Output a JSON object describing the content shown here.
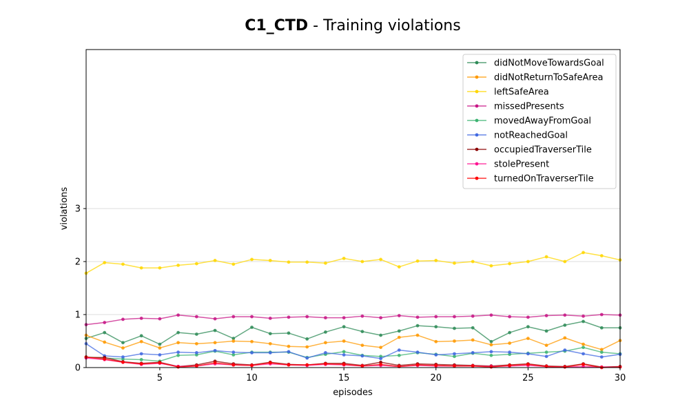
{
  "title": {
    "bold": "C1_CTD",
    "rest": " - Training violations"
  },
  "chart_data": {
    "type": "line",
    "xlabel": "episodes",
    "ylabel": "violations",
    "xlim": [
      1,
      30
    ],
    "ylim": [
      0,
      6
    ],
    "xticks": [
      5,
      10,
      15,
      20,
      25,
      30
    ],
    "yticks": [
      0,
      1,
      2,
      3
    ],
    "grid": "horizontal",
    "legend_position": "top-right",
    "x": [
      1,
      2,
      3,
      4,
      5,
      6,
      7,
      8,
      9,
      10,
      11,
      12,
      13,
      14,
      15,
      16,
      17,
      18,
      19,
      20,
      21,
      22,
      23,
      24,
      25,
      26,
      27,
      28,
      29,
      30
    ],
    "series": [
      {
        "name": "didNotMoveTowardsGoal",
        "color": "#2e8b57",
        "values": [
          0.55,
          0.66,
          0.47,
          0.6,
          0.44,
          0.66,
          0.63,
          0.7,
          0.55,
          0.76,
          0.64,
          0.65,
          0.54,
          0.67,
          0.77,
          0.68,
          0.61,
          0.69,
          0.79,
          0.77,
          0.74,
          0.75,
          0.49,
          0.66,
          0.77,
          0.69,
          0.8,
          0.87,
          0.75,
          0.75
        ]
      },
      {
        "name": "didNotReturnToSafeArea",
        "color": "#ff9900",
        "values": [
          0.61,
          0.48,
          0.37,
          0.49,
          0.37,
          0.47,
          0.45,
          0.47,
          0.5,
          0.49,
          0.45,
          0.4,
          0.39,
          0.47,
          0.5,
          0.42,
          0.38,
          0.57,
          0.61,
          0.49,
          0.5,
          0.52,
          0.43,
          0.46,
          0.55,
          0.42,
          0.56,
          0.44,
          0.34,
          0.51
        ]
      },
      {
        "name": "leftSafeArea",
        "color": "#ffd700",
        "values": [
          1.78,
          1.98,
          1.95,
          1.88,
          1.88,
          1.93,
          1.96,
          2.02,
          1.95,
          2.04,
          2.02,
          1.99,
          1.99,
          1.97,
          2.06,
          2.0,
          2.04,
          1.9,
          2.01,
          2.02,
          1.97,
          2.0,
          1.92,
          1.96,
          2.0,
          2.09,
          2.0,
          2.17,
          2.11,
          2.03
        ]
      },
      {
        "name": "missedPresents",
        "color": "#c71585",
        "values": [
          0.81,
          0.85,
          0.91,
          0.93,
          0.92,
          0.99,
          0.96,
          0.92,
          0.96,
          0.96,
          0.93,
          0.95,
          0.96,
          0.94,
          0.94,
          0.97,
          0.94,
          0.98,
          0.95,
          0.96,
          0.96,
          0.97,
          0.99,
          0.96,
          0.95,
          0.98,
          0.99,
          0.97,
          1.0,
          0.99
        ]
      },
      {
        "name": "movedAwayFromGoal",
        "color": "#3cb371",
        "values": [
          0.2,
          0.18,
          0.16,
          0.15,
          0.12,
          0.23,
          0.24,
          0.31,
          0.24,
          0.29,
          0.29,
          0.29,
          0.19,
          0.25,
          0.3,
          0.23,
          0.21,
          0.23,
          0.28,
          0.25,
          0.21,
          0.27,
          0.23,
          0.25,
          0.27,
          0.29,
          0.31,
          0.38,
          0.29,
          0.26
        ]
      },
      {
        "name": "notReachedGoal",
        "color": "#4169e1",
        "values": [
          0.45,
          0.22,
          0.2,
          0.26,
          0.24,
          0.29,
          0.28,
          0.32,
          0.29,
          0.28,
          0.28,
          0.3,
          0.18,
          0.28,
          0.24,
          0.22,
          0.17,
          0.33,
          0.29,
          0.24,
          0.26,
          0.28,
          0.3,
          0.29,
          0.26,
          0.21,
          0.33,
          0.26,
          0.2,
          0.25
        ]
      },
      {
        "name": "occupiedTraverserTile",
        "color": "#8b0000",
        "values": [
          0.19,
          0.19,
          0.11,
          0.08,
          0.1,
          0.02,
          0.05,
          0.12,
          0.07,
          0.05,
          0.1,
          0.06,
          0.05,
          0.08,
          0.08,
          0.04,
          0.1,
          0.04,
          0.07,
          0.06,
          0.05,
          0.04,
          0.03,
          0.05,
          0.07,
          0.03,
          0.02,
          0.07,
          0.01,
          0.02
        ]
      },
      {
        "name": "stolePresent",
        "color": "#ff1493",
        "values": [
          0.18,
          0.15,
          0.1,
          0.06,
          0.08,
          0.02,
          0.03,
          0.07,
          0.05,
          0.04,
          0.07,
          0.05,
          0.04,
          0.06,
          0.05,
          0.03,
          0.04,
          0.02,
          0.04,
          0.03,
          0.03,
          0.03,
          0.02,
          0.03,
          0.04,
          0.02,
          0.01,
          0.02,
          0.01,
          0.01
        ]
      },
      {
        "name": "turnedOnTraverserTile",
        "color": "#ff0000",
        "values": [
          0.2,
          0.16,
          0.1,
          0.07,
          0.09,
          0.01,
          0.03,
          0.09,
          0.05,
          0.04,
          0.09,
          0.05,
          0.05,
          0.07,
          0.06,
          0.03,
          0.06,
          0.02,
          0.05,
          0.04,
          0.03,
          0.03,
          0.01,
          0.04,
          0.06,
          0.02,
          0.01,
          0.06,
          0.0,
          0.01
        ]
      }
    ]
  }
}
